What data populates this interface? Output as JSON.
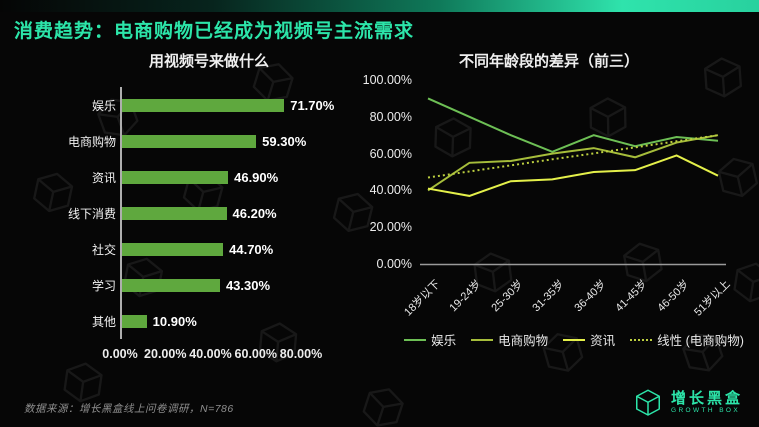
{
  "page": {
    "title": "消费趋势：电商购物已经成为视频号主流需求"
  },
  "colors": {
    "accent_teal": "#2ce5a9",
    "bar_green": "#5fa83e",
    "entertainment_green": "#6dbf55",
    "ecommerce_green": "#a6bd3b",
    "info_yellow": "#e4f04a",
    "trend_dotted": "#bccf40",
    "axis_gray": "#aeaeae"
  },
  "chart_data": [
    {
      "type": "bar",
      "orientation": "horizontal",
      "title": "用视频号来做什么",
      "categories": [
        "娱乐",
        "电商购物",
        "资讯",
        "线下消费",
        "社交",
        "学习",
        "其他"
      ],
      "values": [
        71.7,
        59.3,
        46.9,
        46.2,
        44.7,
        43.3,
        10.9
      ],
      "value_labels": [
        "71.70%",
        "59.30%",
        "46.90%",
        "46.20%",
        "44.70%",
        "43.30%",
        "10.90%"
      ],
      "xlim": [
        0,
        80
      ],
      "x_ticks": [
        "0.00%",
        "20.00%",
        "40.00%",
        "60.00%",
        "80.00%"
      ],
      "bar_color": "#5fa83e",
      "grid": false
    },
    {
      "type": "line",
      "title": "不同年龄段的差异（前三）",
      "categories": [
        "18岁以下",
        "19-24岁",
        "25-30岁",
        "31-35岁",
        "36-40岁",
        "41-45岁",
        "46-50岁",
        "51岁以上"
      ],
      "ylim": [
        0,
        100
      ],
      "y_ticks": [
        "100.00%",
        "80.00%",
        "60.00%",
        "40.00%",
        "20.00%",
        "0.00%"
      ],
      "legend_position": "bottom",
      "grid": false,
      "series": [
        {
          "name": "娱乐",
          "color": "#6dbf55",
          "style": "solid",
          "values": [
            90,
            80,
            70,
            61,
            70,
            64,
            69,
            67
          ]
        },
        {
          "name": "电商购物",
          "color": "#a6bd3b",
          "style": "solid",
          "values": [
            40,
            55,
            56,
            60,
            63,
            58,
            66,
            70
          ]
        },
        {
          "name": "资讯",
          "color": "#e4f04a",
          "style": "solid",
          "values": [
            41,
            37,
            45,
            46,
            50,
            51,
            59,
            48
          ]
        },
        {
          "name": "线性 (电商购物)",
          "color": "#bccf40",
          "style": "dotted",
          "values": [
            47,
            50.3,
            53.6,
            56.9,
            60.1,
            63.4,
            66.7,
            70
          ]
        }
      ]
    }
  ],
  "footer": {
    "source_note": "数据来源：增长黑盒线上问卷调研，N=786"
  },
  "logo": {
    "name_cn": "增长黑盒",
    "name_en": "GROWTH BOX"
  }
}
